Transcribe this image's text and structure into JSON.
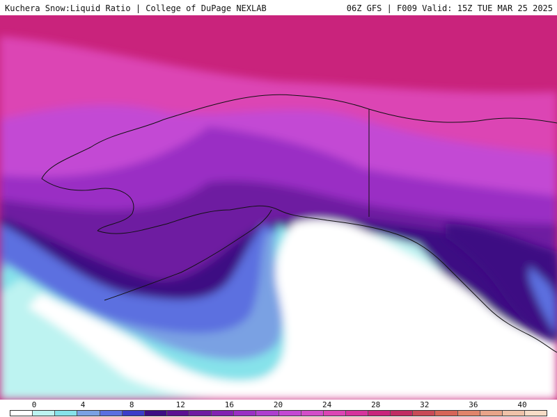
{
  "header": {
    "left": "Kuchera Snow:Liquid Ratio | College of DuPage NEXLAB",
    "right": "06Z GFS | F009 Valid: 15Z TUE MAR 25 2025"
  },
  "legend": {
    "ticks": [
      "0",
      "4",
      "8",
      "12",
      "16",
      "20",
      "24",
      "28",
      "32",
      "36",
      "40"
    ],
    "colors": [
      "#ffffff",
      "#bdf3f1",
      "#86e2ea",
      "#7aa1e3",
      "#5b6fe0",
      "#3b3cc8",
      "#3e0d83",
      "#5c1291",
      "#6e1ba1",
      "#8222b2",
      "#9a2fc4",
      "#ae3fcf",
      "#c348d4",
      "#d34ec9",
      "#dc45b4",
      "#d6339d",
      "#c9237c",
      "#c12b63",
      "#c94a57",
      "#d66558",
      "#e0846a",
      "#e8a489",
      "#efc2a9",
      "#f7dcc6"
    ]
  },
  "map_colors": {
    "ocean_white": "#ffffff",
    "light_cyan": "#bdf3f1",
    "cyan": "#86e2ea",
    "light_blue": "#7aa1e3",
    "blue": "#5b6fe0",
    "deep_purple": "#3e0d83",
    "purple": "#6e1ba1",
    "violet": "#9a2fc4",
    "orchid": "#c348d4",
    "pink": "#dc45b4",
    "magenta": "#c9237c",
    "coastline": "#111111"
  }
}
